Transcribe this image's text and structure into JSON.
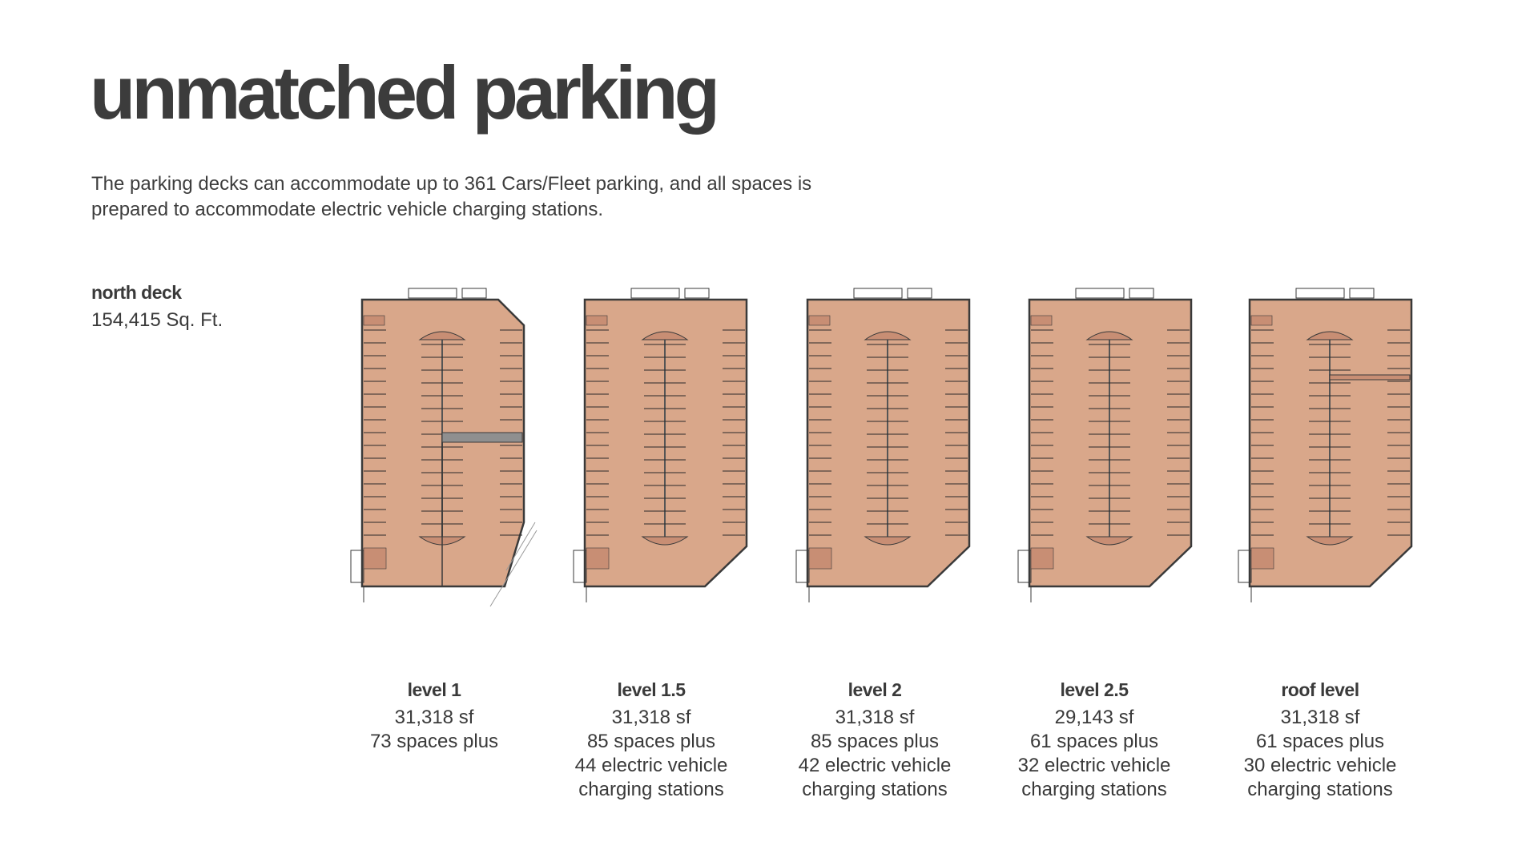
{
  "page": {
    "title": "unmatched parking",
    "intro": "The parking decks can accommodate up to 361 Cars/Fleet parking, and all spaces is prepared to accommodate electric vehicle charging stations."
  },
  "deck": {
    "name": "north deck",
    "area": "154,415 Sq. Ft."
  },
  "levels": [
    {
      "name": "level 1",
      "area": "31,318 sf",
      "spaces": "73 spaces plus",
      "ev_line1": "",
      "ev_line2": ""
    },
    {
      "name": "level 1.5",
      "area": "31,318 sf",
      "spaces": "85 spaces plus",
      "ev_line1": "44 electric vehicle",
      "ev_line2": "charging stations"
    },
    {
      "name": "level 2",
      "area": "31,318 sf",
      "spaces": "85 spaces plus",
      "ev_line1": "42 electric vehicle",
      "ev_line2": "charging stations"
    },
    {
      "name": "level 2.5",
      "area": "29,143 sf",
      "spaces": "61 spaces plus",
      "ev_line1": "32 electric vehicle",
      "ev_line2": "charging stations"
    },
    {
      "name": "roof level",
      "area": "31,318 sf",
      "spaces": "61 spaces plus",
      "ev_line1": "30 electric vehicle",
      "ev_line2": "charging stations"
    }
  ],
  "colors": {
    "floor_fill": "#d9a78a",
    "outline": "#3a3a3a",
    "text": "#3a3a3a"
  }
}
